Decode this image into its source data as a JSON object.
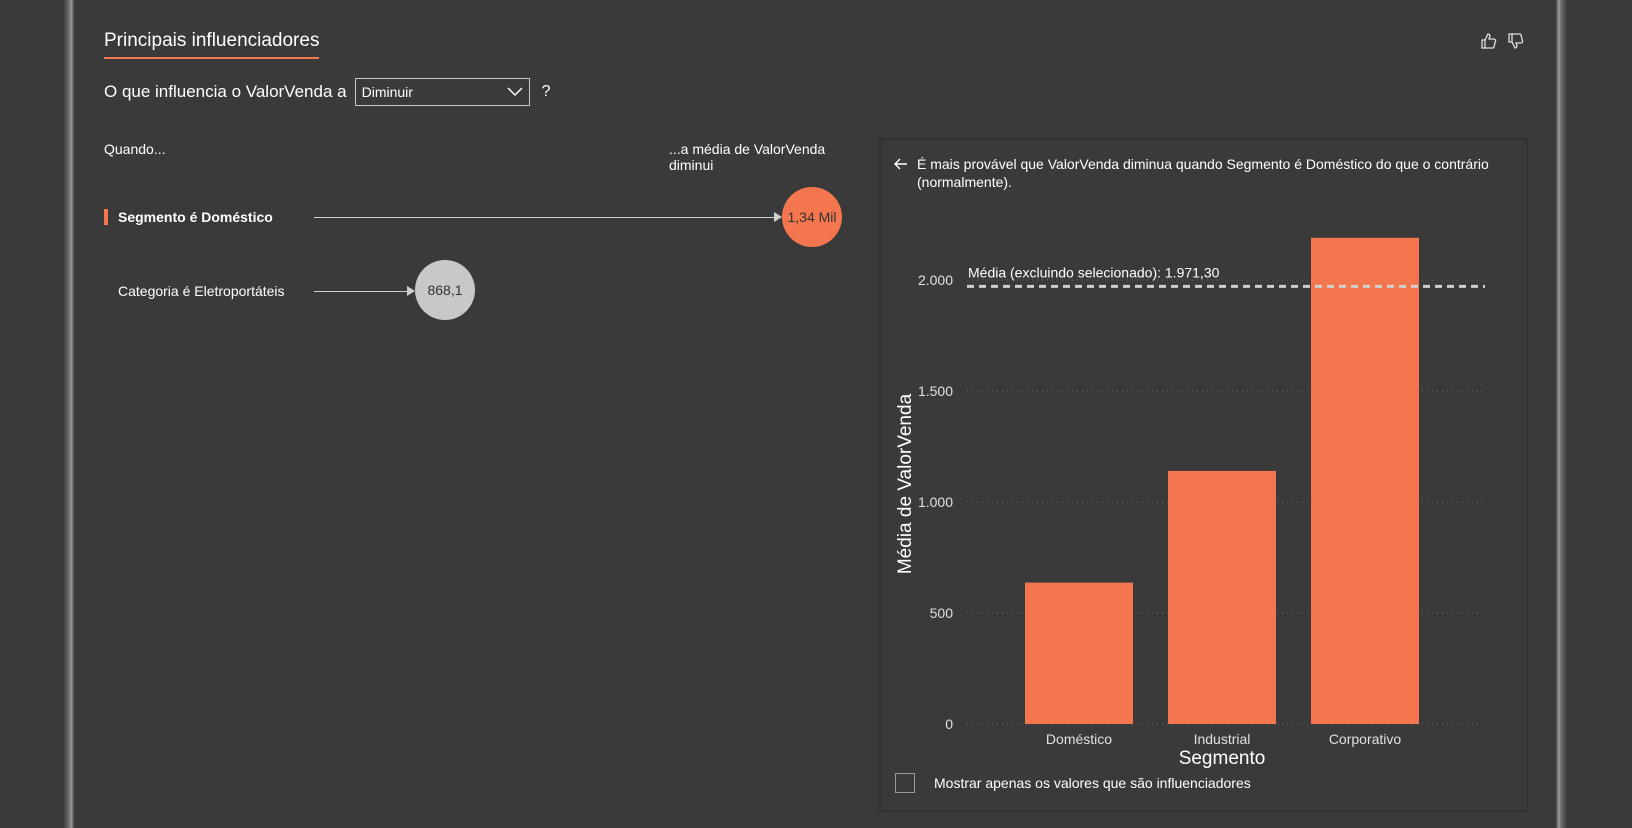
{
  "visual": {
    "title": "Principais influenciadores",
    "like_icon": "thumbs-up-icon",
    "dislike_icon": "thumbs-down-icon"
  },
  "question": {
    "prefix": "O que influencia o ValorVenda a",
    "selected": "Diminuir",
    "suffix": "?"
  },
  "columns": {
    "when": "Quando...",
    "effect_line1": "...a média de ValorVenda",
    "effect_line2": "diminui"
  },
  "influencers": [
    {
      "label": "Segmento é Doméstico",
      "value_label": "1,34 Mil",
      "value": 1340,
      "selected": true,
      "color": "#f4764f"
    },
    {
      "label": "Categoria é Eletroportáteis",
      "value_label": "868,1",
      "value": 868.1,
      "selected": false,
      "color": "#c8c8c8"
    }
  ],
  "detail": {
    "back_icon": "arrow-left-icon",
    "description": "É mais provável que ValorVenda diminua quando Segmento é Doméstico do que o contrário (normalmente).",
    "checkbox_label": "Mostrar apenas os valores que são influenciadores"
  },
  "chart_data": {
    "type": "bar",
    "categories": [
      "Doméstico",
      "Industrial",
      "Corporativo"
    ],
    "values": [
      637,
      1140,
      2190
    ],
    "xlabel": "Segmento",
    "ylabel": "Média de ValorVenda",
    "ylim": [
      0,
      2000
    ],
    "yticks": [
      0,
      500,
      1000,
      1500,
      2000
    ],
    "ytick_labels": [
      "0",
      "500",
      "1.000",
      "1.500",
      "2.000"
    ],
    "grid": true,
    "bar_color": "#f4764f",
    "reference_line": {
      "label": "Média (excluindo selecionado): 1.971,30",
      "value": 1971.3
    }
  }
}
